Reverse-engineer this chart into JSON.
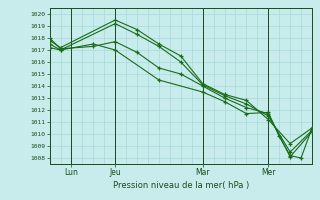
{
  "xlabel": "Pression niveau de la mer( hPa )",
  "ylim": [
    1007.5,
    1020.5
  ],
  "xlim": [
    0,
    72
  ],
  "bg_color": "#c8ecec",
  "grid_color": "#a8d8d8",
  "line_color": "#1a6b1a",
  "tick_label_color": "#1a4a1a",
  "xtick_positions": [
    6,
    18,
    42,
    60
  ],
  "xtick_labels": [
    "Lun",
    "Jeu",
    "Mar",
    "Mer"
  ],
  "ytick_positions": [
    1008,
    1009,
    1010,
    1011,
    1012,
    1013,
    1014,
    1015,
    1016,
    1017,
    1018,
    1019,
    1020
  ],
  "vlines": [
    6,
    18,
    42,
    60
  ],
  "series": [
    {
      "x": [
        0,
        3,
        18,
        24,
        30,
        36,
        42,
        48,
        54,
        60,
        66,
        72
      ],
      "y": [
        1017.8,
        1017.2,
        1019.5,
        1018.7,
        1017.5,
        1016.5,
        1014.2,
        1013.3,
        1012.8,
        1011.2,
        1009.2,
        1010.5
      ]
    },
    {
      "x": [
        0,
        3,
        18,
        24,
        30,
        36,
        42,
        48,
        54,
        60,
        66,
        72
      ],
      "y": [
        1017.5,
        1017.0,
        1019.2,
        1018.3,
        1017.3,
        1016.0,
        1014.1,
        1013.2,
        1012.5,
        1011.5,
        1008.5,
        1010.3
      ]
    },
    {
      "x": [
        0,
        3,
        12,
        18,
        24,
        30,
        36,
        42,
        48,
        54,
        60,
        66,
        72
      ],
      "y": [
        1018.0,
        1017.1,
        1017.3,
        1017.7,
        1016.8,
        1015.5,
        1015.0,
        1014.0,
        1013.0,
        1012.2,
        1011.7,
        1008.1,
        1010.2
      ]
    },
    {
      "x": [
        0,
        3,
        12,
        18,
        30,
        42,
        48,
        54,
        60,
        63,
        66,
        69,
        72
      ],
      "y": [
        1017.2,
        1017.0,
        1017.5,
        1017.0,
        1014.5,
        1013.5,
        1012.7,
        1011.7,
        1011.8,
        1009.8,
        1008.2,
        1008.0,
        1010.5
      ]
    }
  ]
}
